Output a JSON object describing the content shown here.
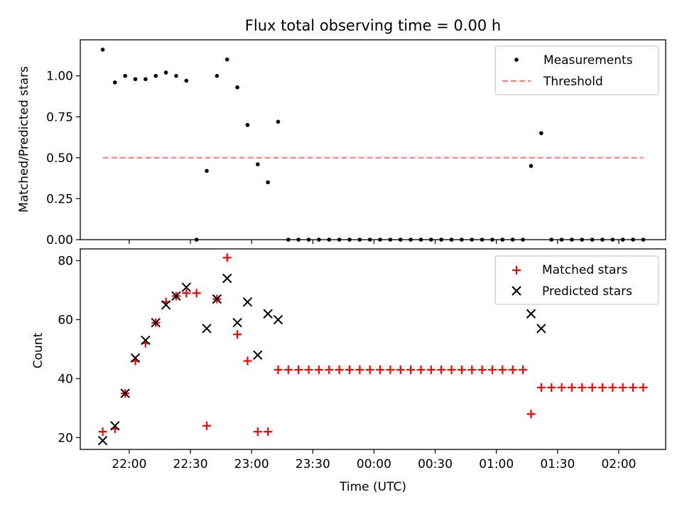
{
  "chart_data": [
    {
      "type": "scatter",
      "title": "Flux total observing time = 0.00 h",
      "xlabel": "",
      "ylabel": "Matched/Predicted stars",
      "ylim": [
        0,
        1.22
      ],
      "yticks": [
        "0.00",
        "0.25",
        "0.50",
        "0.75",
        "1.00"
      ],
      "ytick_values": [
        0,
        0.25,
        0.5,
        0.75,
        1.0
      ],
      "legend": {
        "location": "upper right",
        "entries": [
          "Measurements",
          "Threshold"
        ]
      },
      "series": [
        {
          "name": "Measurements",
          "marker": "dot",
          "color": "#000000",
          "x": [
            "21:47",
            "21:53",
            "21:58",
            "22:03",
            "22:08",
            "22:13",
            "22:18",
            "22:23",
            "22:28",
            "22:33",
            "22:38",
            "22:43",
            "22:48",
            "22:53",
            "22:58",
            "23:03",
            "23:08",
            "23:13",
            "23:18",
            "23:23",
            "23:28",
            "23:33",
            "23:38",
            "23:43",
            "23:48",
            "23:53",
            "23:58",
            "00:03",
            "00:08",
            "00:13",
            "00:18",
            "00:23",
            "00:28",
            "00:33",
            "00:38",
            "00:43",
            "00:48",
            "00:53",
            "00:58",
            "01:03",
            "01:08",
            "01:13",
            "01:17",
            "01:22",
            "01:27",
            "01:32",
            "01:37",
            "01:42",
            "01:47",
            "01:52",
            "01:57",
            "02:02",
            "02:07",
            "02:12"
          ],
          "y": [
            1.16,
            0.96,
            1.0,
            0.98,
            0.98,
            1.0,
            1.02,
            1.0,
            0.97,
            0.0,
            0.42,
            1.0,
            1.1,
            0.93,
            0.7,
            0.46,
            0.35,
            0.72,
            0,
            0,
            0,
            0,
            0,
            0,
            0,
            0,
            0,
            0,
            0,
            0,
            0,
            0,
            0,
            0,
            0,
            0,
            0,
            0,
            0,
            0,
            0,
            0,
            0.45,
            0.65,
            0,
            0,
            0,
            0,
            0,
            0,
            0,
            0,
            0,
            0
          ]
        },
        {
          "name": "Threshold",
          "style": "dashed",
          "color": "#ff7f7f",
          "x": [
            "21:47",
            "02:12"
          ],
          "y": [
            0.5,
            0.5
          ]
        }
      ]
    },
    {
      "type": "scatter",
      "title": "",
      "xlabel": "Time (UTC)",
      "ylabel": "Count",
      "ylim": [
        16,
        84
      ],
      "yticks": [
        "20",
        "40",
        "60",
        "80"
      ],
      "ytick_values": [
        20,
        40,
        60,
        80
      ],
      "xticks": [
        "22:00",
        "22:30",
        "23:00",
        "23:30",
        "00:00",
        "00:30",
        "01:00",
        "01:30",
        "02:00"
      ],
      "legend": {
        "location": "upper right",
        "entries": [
          "Matched stars",
          "Predicted stars"
        ]
      },
      "series": [
        {
          "name": "Matched stars",
          "marker": "plus",
          "color": "#ff0000",
          "x": [
            "21:47",
            "21:53",
            "21:58",
            "22:03",
            "22:08",
            "22:13",
            "22:18",
            "22:23",
            "22:28",
            "22:33",
            "22:38",
            "22:43",
            "22:48",
            "22:53",
            "22:58",
            "23:03",
            "23:08",
            "23:13",
            "23:18",
            "23:23",
            "23:28",
            "23:33",
            "23:38",
            "23:43",
            "23:48",
            "23:53",
            "23:58",
            "00:03",
            "00:08",
            "00:13",
            "00:18",
            "00:23",
            "00:28",
            "00:33",
            "00:38",
            "00:43",
            "00:48",
            "00:53",
            "00:58",
            "01:03",
            "01:08",
            "01:13",
            "01:17",
            "01:22",
            "01:27",
            "01:32",
            "01:37",
            "01:42",
            "01:47",
            "01:52",
            "01:57",
            "02:02",
            "02:07",
            "02:12"
          ],
          "y": [
            22,
            23,
            35,
            46,
            52,
            59,
            66,
            68,
            69,
            69,
            24,
            67,
            81,
            55,
            46,
            22,
            22,
            43,
            43,
            43,
            43,
            43,
            43,
            43,
            43,
            43,
            43,
            43,
            43,
            43,
            43,
            43,
            43,
            43,
            43,
            43,
            43,
            43,
            43,
            43,
            43,
            43,
            28,
            37,
            37,
            37,
            37,
            37,
            37,
            37,
            37,
            37,
            37,
            37
          ]
        },
        {
          "name": "Predicted stars",
          "marker": "x",
          "color": "#000000",
          "x": [
            "21:47",
            "21:53",
            "21:58",
            "22:03",
            "22:08",
            "22:13",
            "22:18",
            "22:23",
            "22:28",
            "22:38",
            "22:43",
            "22:48",
            "22:53",
            "22:58",
            "23:03",
            "23:08",
            "23:13",
            "01:17",
            "01:22"
          ],
          "y": [
            19,
            24,
            35,
            47,
            53,
            59,
            65,
            68,
            71,
            57,
            67,
            74,
            59,
            66,
            48,
            62,
            60,
            62,
            57
          ]
        }
      ]
    }
  ]
}
